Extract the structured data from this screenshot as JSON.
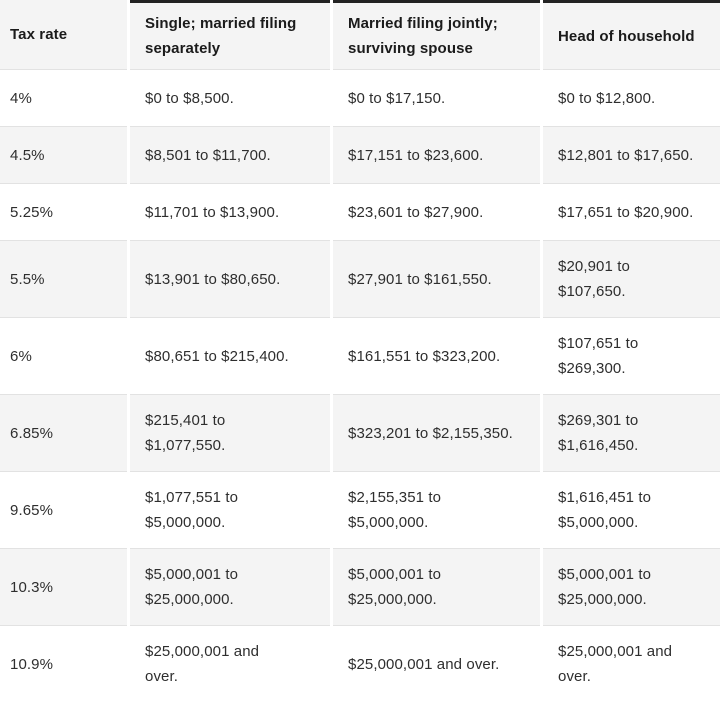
{
  "table": {
    "columns": [
      "Tax rate",
      "Single; married filing\nseparately",
      "Married filing jointly;\nsurviving spouse",
      "Head of household"
    ],
    "rows": [
      [
        "4%",
        "$0 to $8,500.",
        "$0 to $17,150.",
        "$0 to $12,800."
      ],
      [
        "4.5%",
        "$8,501 to $11,700.",
        "$17,151 to $23,600.",
        "$12,801 to $17,650."
      ],
      [
        "5.25%",
        "$11,701 to $13,900.",
        "$23,601 to $27,900.",
        "$17,651 to $20,900."
      ],
      [
        "5.5%",
        "$13,901 to $80,650.",
        "$27,901 to $161,550.",
        "$20,901 to\n$107,650."
      ],
      [
        "6%",
        "$80,651 to $215,400.",
        "$161,551 to $323,200.",
        "$107,651 to\n$269,300."
      ],
      [
        "6.85%",
        "$215,401 to\n$1,077,550.",
        "$323,201 to $2,155,350.",
        "$269,301 to\n$1,616,450."
      ],
      [
        "9.65%",
        "$1,077,551 to\n$5,000,000.",
        "$2,155,351 to\n$5,000,000.",
        "$1,616,451 to\n$5,000,000."
      ],
      [
        "10.3%",
        "$5,000,001 to\n$25,000,000.",
        "$5,000,001 to\n$25,000,000.",
        "$5,000,001 to\n$25,000,000."
      ],
      [
        "10.9%",
        "$25,000,001 and\nover.",
        "$25,000,001 and over.",
        "$25,000,001 and\nover."
      ]
    ]
  },
  "chart_data": {
    "type": "table",
    "columns": [
      "Tax rate",
      "Single; married filing separately",
      "Married filing jointly; surviving spouse",
      "Head of household"
    ],
    "rows": [
      [
        "4%",
        "$0 to $8,500.",
        "$0 to $17,150.",
        "$0 to $12,800."
      ],
      [
        "4.5%",
        "$8,501 to $11,700.",
        "$17,151 to $23,600.",
        "$12,801 to $17,650."
      ],
      [
        "5.25%",
        "$11,701 to $13,900.",
        "$23,601 to $27,900.",
        "$17,651 to $20,900."
      ],
      [
        "5.5%",
        "$13,901 to $80,650.",
        "$27,901 to $161,550.",
        "$20,901 to $107,650."
      ],
      [
        "6%",
        "$80,651 to $215,400.",
        "$161,551 to $323,200.",
        "$107,651 to $269,300."
      ],
      [
        "6.85%",
        "$215,401 to $1,077,550.",
        "$323,201 to $2,155,350.",
        "$269,301 to $1,616,450."
      ],
      [
        "9.65%",
        "$1,077,551 to $5,000,000.",
        "$2,155,351 to $5,000,000.",
        "$1,616,451 to $5,000,000."
      ],
      [
        "10.3%",
        "$5,000,001 to $25,000,000.",
        "$5,000,001 to $25,000,000.",
        "$5,000,001 to $25,000,000."
      ],
      [
        "10.9%",
        "$25,000,001 and over.",
        "$25,000,001 and over.",
        "$25,000,001 and over."
      ]
    ]
  },
  "colors": {
    "header_top_border": "#222222",
    "row_alt_bg": "#f4f4f4",
    "row_bg": "#ffffff",
    "row_separator": "#e2e2e2",
    "header_text": "#1b1b1b",
    "cell_text": "#2e2e2e"
  }
}
